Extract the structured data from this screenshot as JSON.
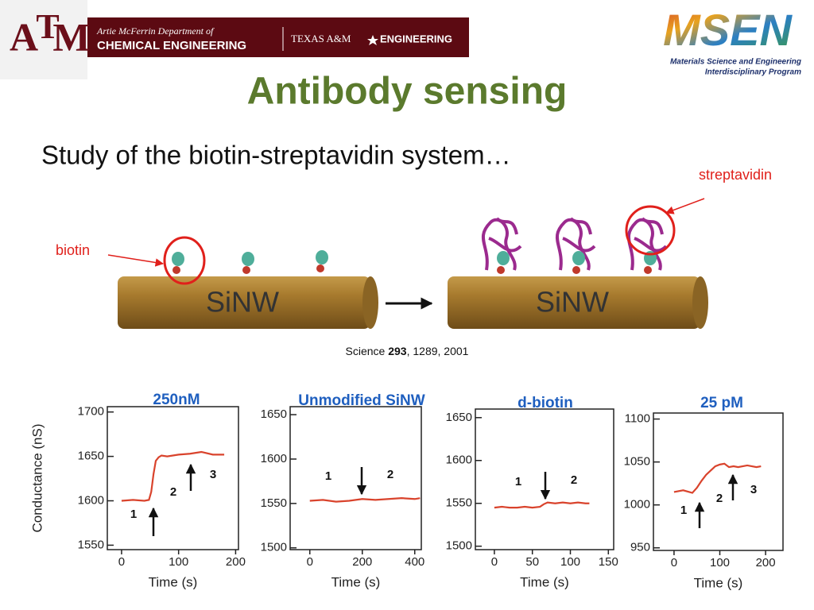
{
  "header": {
    "tamu_letters": [
      "A",
      "T",
      "M"
    ],
    "dept_line1": "Artie McFerrin Department of",
    "dept_line2": "CHEMICAL ENGINEERING",
    "texas": "TEXAS A&M",
    "engineering": "ENGINEERING",
    "msen": "MSEN",
    "msen_line1": "Materials Science and Engineering",
    "msen_line2": "Interdisciplinary Program"
  },
  "slide": {
    "title": "Antibody sensing",
    "subtitle": "Study of the biotin-streptavidin system…"
  },
  "diagram": {
    "biotin_label": "biotin",
    "streptavidin_label": "streptavidin",
    "wire_labels": [
      "SiNW",
      "SiNW"
    ],
    "citation": [
      "Science",
      "293",
      ", 1289, 2001"
    ]
  },
  "chart_data": [
    {
      "type": "line",
      "title": "250nM",
      "x_label": "Time (s)",
      "y_label": "Conductance (nS)",
      "x": [
        0,
        20,
        40,
        48,
        52,
        56,
        60,
        65,
        70,
        80,
        100,
        120,
        140,
        160,
        180
      ],
      "series": [
        {
          "color": "#d9432c",
          "values": [
            1600,
            1601,
            1600,
            1601,
            1610,
            1630,
            1645,
            1649,
            1651,
            1650,
            1652,
            1653,
            1655,
            1652,
            1652
          ]
        }
      ],
      "xlim": [
        -25,
        205
      ],
      "ylim": [
        1545,
        1706
      ],
      "xticks": [
        0,
        100,
        200
      ],
      "yticks": [
        1550,
        1600,
        1650,
        1700
      ],
      "annotations": [
        "1",
        "2",
        "3"
      ]
    },
    {
      "type": "line",
      "title": "Unmodified SiNW",
      "x_label": "Time (s)",
      "x": [
        0,
        50,
        100,
        150,
        200,
        250,
        300,
        350,
        400,
        420
      ],
      "series": [
        {
          "color": "#d9432c",
          "values": [
            1553,
            1554,
            1552,
            1553,
            1555,
            1554,
            1555,
            1556,
            1555,
            1556
          ]
        }
      ],
      "xlim": [
        -75,
        425
      ],
      "ylim": [
        1498,
        1659
      ],
      "xticks": [
        0,
        200,
        400
      ],
      "yticks": [
        1500,
        1550,
        1600,
        1650
      ],
      "annotations": [
        "1",
        "2"
      ]
    },
    {
      "type": "line",
      "title": "d-biotin",
      "x_label": "Time (s)",
      "x": [
        0,
        10,
        20,
        30,
        40,
        50,
        60,
        65,
        70,
        80,
        90,
        100,
        110,
        120,
        125
      ],
      "series": [
        {
          "color": "#d9432c",
          "values": [
            1545,
            1546,
            1545,
            1545,
            1546,
            1545,
            1546,
            1549,
            1551,
            1550,
            1551,
            1550,
            1551,
            1550,
            1550
          ]
        }
      ],
      "xlim": [
        -25,
        157
      ],
      "ylim": [
        1496,
        1660
      ],
      "xticks": [
        0,
        50,
        100,
        150
      ],
      "yticks": [
        1500,
        1550,
        1600,
        1650
      ],
      "annotations": [
        "1",
        "2"
      ]
    },
    {
      "type": "line",
      "title": "25 pM",
      "x_label": "Time (s)",
      "x": [
        0,
        20,
        40,
        50,
        60,
        70,
        80,
        90,
        100,
        110,
        120,
        130,
        140,
        160,
        180,
        190
      ],
      "series": [
        {
          "color": "#d9432c",
          "values": [
            1015,
            1017,
            1014,
            1020,
            1028,
            1035,
            1040,
            1045,
            1047,
            1048,
            1044,
            1045,
            1044,
            1046,
            1044,
            1045
          ]
        }
      ],
      "xlim": [
        -45,
        238
      ],
      "ylim": [
        947,
        1107
      ],
      "xticks": [
        0,
        100,
        200
      ],
      "yticks": [
        950,
        1000,
        1050,
        1100
      ],
      "annotations": [
        "1",
        "2",
        "3"
      ]
    }
  ]
}
